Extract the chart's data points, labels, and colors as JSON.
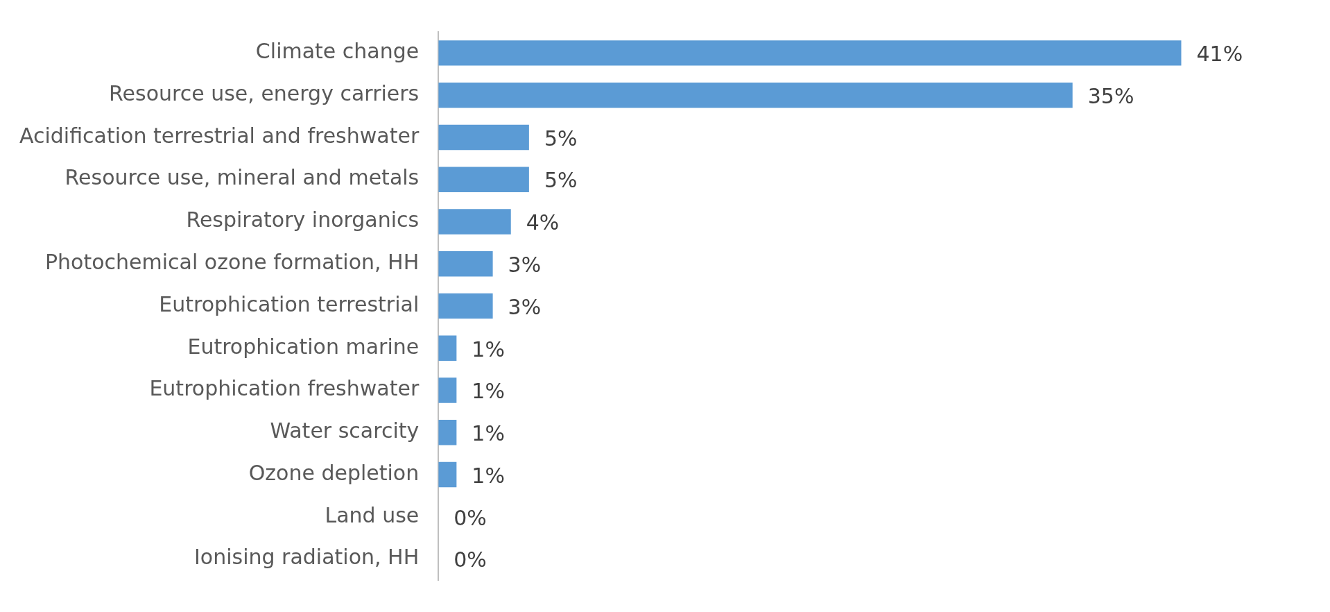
{
  "chart_data": {
    "type": "bar",
    "orientation": "horizontal",
    "color": "#5b9bd5",
    "categories": [
      "Climate change",
      "Resource use, energy carriers",
      "Acidification terrestrial and freshwater",
      "Resource use, mineral and metals",
      "Respiratory inorganics",
      "Photochemical ozone formation, HH",
      "Eutrophication terrestrial",
      "Eutrophication marine",
      "Eutrophication freshwater",
      "Water scarcity",
      "Ozone depletion",
      "Land use",
      "Ionising radiation, HH"
    ],
    "values": [
      41,
      35,
      5,
      5,
      4,
      3,
      3,
      1,
      1,
      1,
      1,
      0,
      0
    ],
    "value_labels": [
      "41%",
      "35%",
      "5%",
      "5%",
      "4%",
      "3%",
      "3%",
      "1%",
      "1%",
      "1%",
      "1%",
      "0%",
      "0%"
    ]
  }
}
